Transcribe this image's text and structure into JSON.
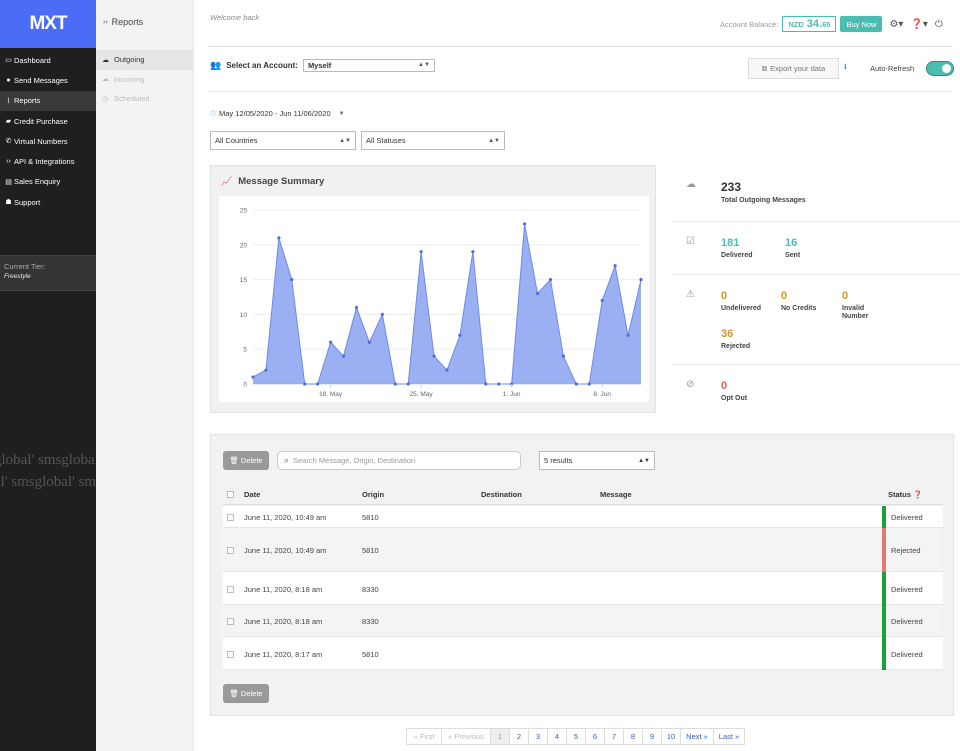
{
  "brand": {
    "logo_text": "MXT"
  },
  "sidebar": {
    "items": [
      {
        "label": "Dashboard",
        "icon": "monitor-icon",
        "glyph": "▭"
      },
      {
        "label": "Send Messages",
        "icon": "chat-icon",
        "glyph": "●"
      },
      {
        "label": "Reports",
        "icon": "chart-icon",
        "glyph": "⌇"
      },
      {
        "label": "Credit Purchase",
        "icon": "cart-icon",
        "glyph": "▰"
      },
      {
        "label": "Virtual Numbers",
        "icon": "phone-icon",
        "glyph": "✆"
      },
      {
        "label": "API & Integrations",
        "icon": "code-icon",
        "glyph": "‹›"
      },
      {
        "label": "Sales Enquiry",
        "icon": "id-card-icon",
        "glyph": "▤"
      },
      {
        "label": "Support",
        "icon": "hands-icon",
        "glyph": "☗"
      }
    ],
    "tier_label": "Current Tier:",
    "tier_value": "Freestyle",
    "watermark_1": "global' smsglobal' smsglob",
    "watermark_2": "al' smsglobal' smsglobal' sm"
  },
  "subsidebar": {
    "title": "Reports",
    "items": [
      {
        "label": "Outgoing",
        "glyph": "☁"
      },
      {
        "label": "Incoming",
        "glyph": "☁"
      },
      {
        "label": "Scheduled",
        "glyph": "◷"
      }
    ]
  },
  "header": {
    "welcome": "Welcome back",
    "balance_label": "Account Balance:",
    "currency": "NZD",
    "balance_whole": "34.",
    "balance_decimal": "65",
    "buy_label": "Buy Now"
  },
  "account": {
    "label": "Select an Account:",
    "value": "Myself"
  },
  "export_label": "Export your data",
  "auto_refresh_label": "Auto-Refresh",
  "date_range": "May 12/05/2020 - Jun 11/06/2020",
  "filters": {
    "countries": "All Countries",
    "statuses": "All Statuses"
  },
  "summary": {
    "title": "Message Summary"
  },
  "chart_data": {
    "type": "area",
    "title": "Message Summary",
    "x_ticks": [
      "18. May",
      "25. May",
      "1. Jun",
      "8. Jun"
    ],
    "x_tick_index": [
      6,
      13,
      20,
      27
    ],
    "y_ticks": [
      0,
      5,
      10,
      15,
      20,
      25
    ],
    "ylim": [
      0,
      25
    ],
    "values": [
      1,
      2,
      21,
      15,
      0,
      0,
      6,
      4,
      11,
      6,
      10,
      0,
      0,
      19,
      4,
      2,
      7,
      19,
      0,
      0,
      0,
      23,
      13,
      15,
      4,
      0,
      0,
      12,
      17,
      7,
      15
    ],
    "fill_color": "#8aa2f0",
    "line_color": "#6f89e8"
  },
  "stats": {
    "total": {
      "value": "233",
      "label": "Total Outgoing Messages"
    },
    "delivered": {
      "value": "181",
      "label": "Delivered"
    },
    "sent": {
      "value": "16",
      "label": "Sent"
    },
    "undelivered": {
      "value": "0",
      "label": "Undelivered"
    },
    "no_credits": {
      "value": "0",
      "label": "No Credits"
    },
    "invalid": {
      "value": "0",
      "label_1": "Invalid",
      "label_2": "Number"
    },
    "rejected": {
      "value": "36",
      "label": "Rejected"
    },
    "opt_out": {
      "value": "0",
      "label": "Opt Out"
    }
  },
  "table": {
    "delete_label": "Delete",
    "search_placeholder": "Search Message, Origin, Destination",
    "results_value": "5 results",
    "columns": {
      "date": "Date",
      "origin": "Origin",
      "destination": "Destination",
      "message": "Message",
      "status": "Status"
    },
    "rows": [
      {
        "date": "June 11, 2020, 10:49 am",
        "origin": "5810",
        "destination": "",
        "message": "",
        "status": "Delivered",
        "color": "#1aa33a"
      },
      {
        "date": "June 11, 2020, 10:49 am",
        "origin": "5810",
        "destination": "",
        "message": "",
        "status": "Rejected",
        "color": "#e07a74"
      },
      {
        "date": "June 11, 2020, 8:18 am",
        "origin": "8330",
        "destination": "",
        "message": "",
        "status": "Delivered",
        "color": "#1aa33a"
      },
      {
        "date": "June 11, 2020, 8:18 am",
        "origin": "8330",
        "destination": "",
        "message": "",
        "status": "Delivered",
        "color": "#1aa33a"
      },
      {
        "date": "June 11, 2020, 8:17 am",
        "origin": "5810",
        "destination": "",
        "message": "",
        "status": "Delivered",
        "color": "#1aa33a"
      }
    ]
  },
  "pagination": {
    "first": "« First",
    "previous": "« Previous",
    "pages": [
      "1",
      "2",
      "3",
      "4",
      "5",
      "6",
      "7",
      "8",
      "9",
      "10"
    ],
    "next": "Next »",
    "last": "Last »"
  },
  "colors": {
    "accent": "#4bbcb0",
    "brand": "#4a6cf7",
    "link": "#3a5bbf",
    "delivered": "#1aa33a",
    "rejected": "#e07a74",
    "warning": "#d4962a"
  }
}
